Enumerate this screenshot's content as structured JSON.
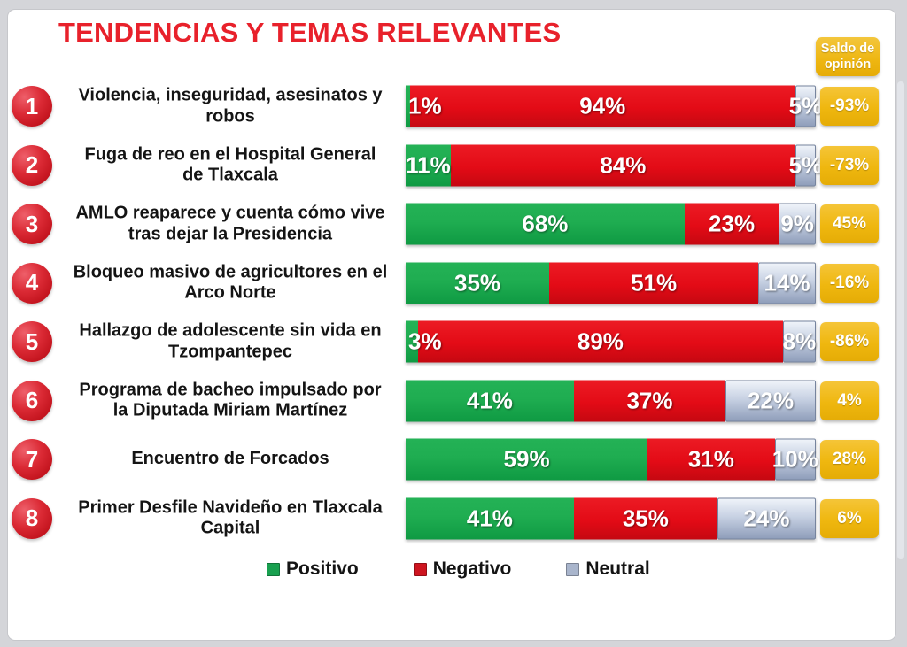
{
  "title": "TENDENCIAS Y TEMAS RELEVANTES",
  "saldo_header": {
    "line1": "Saldo de",
    "line2": "opinión"
  },
  "legend": {
    "items": [
      {
        "label": "Positivo",
        "color": "#18A04F"
      },
      {
        "label": "Negativo",
        "color": "#CE1520"
      },
      {
        "label": "Neutral",
        "color": "#A9B5CC"
      }
    ]
  },
  "colors": {
    "title": "#E8212B",
    "rank_badge": "#D6202C",
    "positivo": "#17A64F",
    "negativo": "#E30B16",
    "neutral": "#9FADC6",
    "saldo_badge": "#EFB70F"
  },
  "chart_data": {
    "type": "bar",
    "stacked": true,
    "horizontal": true,
    "unit": "%",
    "series": [
      "Positivo",
      "Negativo",
      "Neutral"
    ],
    "categories": [
      "Violencia, inseguridad, asesinatos y robos",
      "Fuga de reo en el Hospital General de Tlaxcala",
      "AMLO reaparece y cuenta cómo vive tras dejar la Presidencia",
      "Bloqueo masivo de agricultores en el Arco Norte",
      "Hallazgo de adolescente sin vida en Tzompantepec",
      "Programa de bacheo impulsado por la Diputada Miriam Martínez",
      "Encuentro de Forcados",
      "Primer Desfile Navideño en Tlaxcala Capital"
    ],
    "rows": [
      {
        "rank": "1",
        "topic_lines": [
          "Violencia, inseguridad, asesinatos y",
          "robos"
        ],
        "values": {
          "positivo": 1,
          "negativo": 94,
          "neutral": 5
        },
        "saldo": -93
      },
      {
        "rank": "2",
        "topic_lines": [
          "Fuga de reo en el Hospital General",
          "de Tlaxcala"
        ],
        "values": {
          "positivo": 11,
          "negativo": 84,
          "neutral": 5
        },
        "saldo": -73
      },
      {
        "rank": "3",
        "topic_lines": [
          "AMLO reaparece y cuenta cómo vive",
          "tras dejar la Presidencia"
        ],
        "values": {
          "positivo": 68,
          "negativo": 23,
          "neutral": 9
        },
        "saldo": 45
      },
      {
        "rank": "4",
        "topic_lines": [
          "Bloqueo masivo de agricultores en el",
          "Arco Norte"
        ],
        "values": {
          "positivo": 35,
          "negativo": 51,
          "neutral": 14
        },
        "saldo": -16
      },
      {
        "rank": "5",
        "topic_lines": [
          "Hallazgo de adolescente sin vida en",
          "Tzompantepec"
        ],
        "values": {
          "positivo": 3,
          "negativo": 89,
          "neutral": 8
        },
        "saldo": -86
      },
      {
        "rank": "6",
        "topic_lines": [
          "Programa de bacheo impulsado por",
          "la Diputada Miriam Martínez"
        ],
        "values": {
          "positivo": 41,
          "negativo": 37,
          "neutral": 22
        },
        "saldo": 4
      },
      {
        "rank": "7",
        "topic_lines": [
          "Encuentro de Forcados"
        ],
        "values": {
          "positivo": 59,
          "negativo": 31,
          "neutral": 10
        },
        "saldo": 28
      },
      {
        "rank": "8",
        "topic_lines": [
          "Primer Desfile Navideño en Tlaxcala",
          "Capital"
        ],
        "values": {
          "positivo": 41,
          "negativo": 35,
          "neutral": 24
        },
        "saldo": 6
      }
    ]
  }
}
